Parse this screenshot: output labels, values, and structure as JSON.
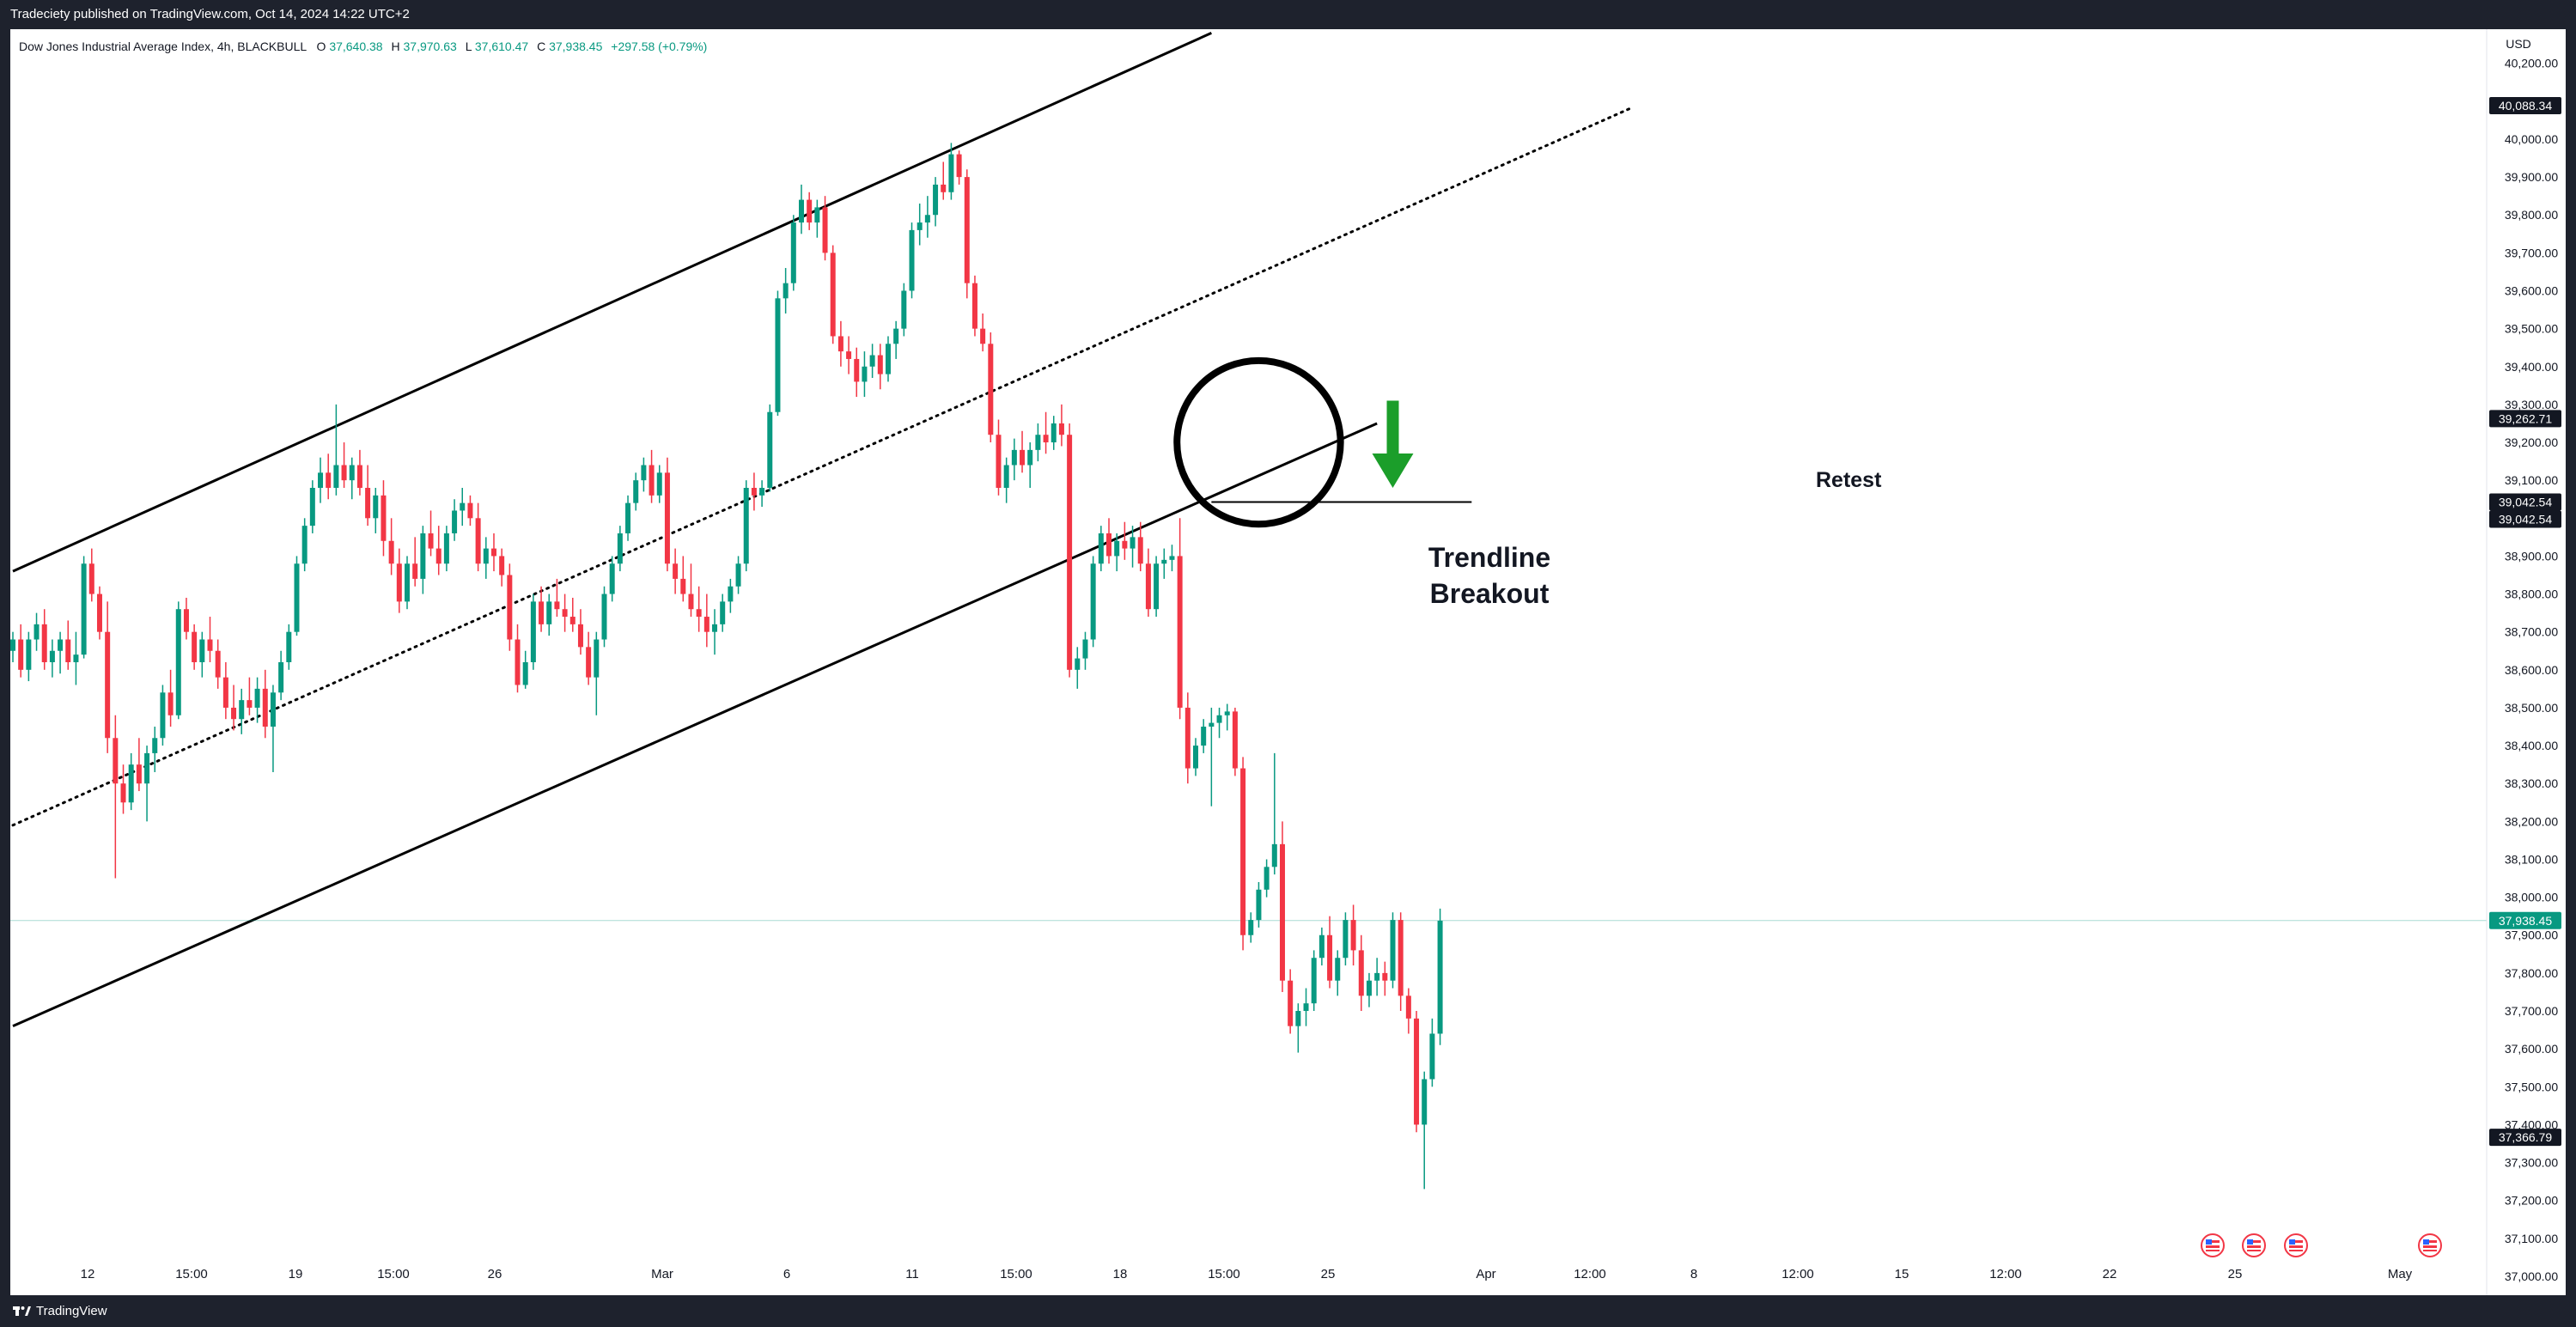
{
  "header": {
    "published": "Tradeciety published on TradingView.com, Oct 14, 2024 14:22 UTC+2"
  },
  "footer": {
    "brand": "TradingView"
  },
  "legend": {
    "symbol": "Dow Jones Industrial Average Index, 4h, BLACKBULL",
    "o_label": "O",
    "o": "37,640.38",
    "h_label": "H",
    "h": "37,970.63",
    "l_label": "L",
    "l": "37,610.47",
    "c_label": "C",
    "c": "37,938.45",
    "change": "+297.58 (+0.79%)"
  },
  "currency": "USD",
  "colors": {
    "up": "#089981",
    "down": "#f23645",
    "last_price": "#089981",
    "annotation_green": "#1b9e2a",
    "label_dark": "#131722"
  },
  "annotations": {
    "breakout_line1": "Trendline",
    "breakout_line2": "Breakout",
    "retest": "Retest"
  },
  "event_icons": [
    "us-flag-icon",
    "us-flag-icon",
    "us-flag-icon",
    "us-flag-icon"
  ],
  "chart_data": {
    "type": "candlestick",
    "interval": "4h",
    "y_range": [
      36950,
      40290
    ],
    "grid": false,
    "y_ticks": [
      {
        "value": 37000,
        "label": "37,000.00"
      },
      {
        "value": 37100,
        "label": "37,100.00"
      },
      {
        "value": 37200,
        "label": "37,200.00"
      },
      {
        "value": 37300,
        "label": "37,300.00"
      },
      {
        "value": 37400,
        "label": "37,400.00"
      },
      {
        "value": 37500,
        "label": "37,500.00"
      },
      {
        "value": 37600,
        "label": "37,600.00"
      },
      {
        "value": 37700,
        "label": "37,700.00"
      },
      {
        "value": 37800,
        "label": "37,800.00"
      },
      {
        "value": 37900,
        "label": "37,900.00"
      },
      {
        "value": 38000,
        "label": "38,000.00"
      },
      {
        "value": 38100,
        "label": "38,100.00"
      },
      {
        "value": 38200,
        "label": "38,200.00"
      },
      {
        "value": 38300,
        "label": "38,300.00"
      },
      {
        "value": 38400,
        "label": "38,400.00"
      },
      {
        "value": 38500,
        "label": "38,500.00"
      },
      {
        "value": 38600,
        "label": "38,600.00"
      },
      {
        "value": 38700,
        "label": "38,700.00"
      },
      {
        "value": 38800,
        "label": "38,800.00"
      },
      {
        "value": 38900,
        "label": "38,900.00"
      },
      {
        "value": 39000,
        "label": "39,000.00"
      },
      {
        "value": 39100,
        "label": "39,100.00"
      },
      {
        "value": 39200,
        "label": "39,200.00"
      },
      {
        "value": 39300,
        "label": "39,300.00"
      },
      {
        "value": 39400,
        "label": "39,400.00"
      },
      {
        "value": 39500,
        "label": "39,500.00"
      },
      {
        "value": 39600,
        "label": "39,600.00"
      },
      {
        "value": 39700,
        "label": "39,700.00"
      },
      {
        "value": 39800,
        "label": "39,800.00"
      },
      {
        "value": 39900,
        "label": "39,900.00"
      },
      {
        "value": 40000,
        "label": "40,000.00"
      },
      {
        "value": 40200,
        "label": "40,200.00"
      }
    ],
    "price_labels": [
      {
        "value": 40088.34,
        "label": "40,088.34",
        "kind": "line"
      },
      {
        "value": 39262.71,
        "label": "39,262.71",
        "kind": "line"
      },
      {
        "value": 39042.54,
        "label": "39,042.54",
        "kind": "line"
      },
      {
        "value": 39042.54,
        "label": "39,042.54",
        "kind": "line"
      },
      {
        "value": 37938.45,
        "label": "37,938.45",
        "kind": "last"
      },
      {
        "value": 37366.79,
        "label": "37,366.79",
        "kind": "line"
      }
    ],
    "x_ticks": [
      "12",
      "15:00",
      "19",
      "15:00",
      "26",
      "Mar",
      "6",
      "11",
      "15:00",
      "18",
      "15:00",
      "25",
      "Apr",
      "12:00",
      "8",
      "12:00",
      "15",
      "12:00",
      "22",
      "25",
      "May"
    ],
    "candles": [
      [
        38650,
        38700,
        38620,
        38680
      ],
      [
        38680,
        38720,
        38580,
        38600
      ],
      [
        38600,
        38700,
        38570,
        38680
      ],
      [
        38680,
        38750,
        38650,
        38720
      ],
      [
        38720,
        38760,
        38600,
        38620
      ],
      [
        38620,
        38680,
        38580,
        38650
      ],
      [
        38650,
        38700,
        38590,
        38680
      ],
      [
        38680,
        38730,
        38600,
        38620
      ],
      [
        38620,
        38700,
        38560,
        38640
      ],
      [
        38640,
        38900,
        38630,
        38880
      ],
      [
        38880,
        38920,
        38780,
        38800
      ],
      [
        38800,
        38820,
        38680,
        38700
      ],
      [
        38700,
        38780,
        38380,
        38420
      ],
      [
        38420,
        38480,
        38050,
        38300
      ],
      [
        38300,
        38350,
        38220,
        38250
      ],
      [
        38250,
        38380,
        38230,
        38350
      ],
      [
        38350,
        38420,
        38280,
        38300
      ],
      [
        38300,
        38400,
        38200,
        38380
      ],
      [
        38380,
        38450,
        38330,
        38420
      ],
      [
        38420,
        38560,
        38400,
        38540
      ],
      [
        38540,
        38600,
        38450,
        38480
      ],
      [
        38480,
        38780,
        38470,
        38760
      ],
      [
        38760,
        38790,
        38680,
        38700
      ],
      [
        38700,
        38720,
        38600,
        38620
      ],
      [
        38620,
        38700,
        38580,
        38680
      ],
      [
        38680,
        38740,
        38620,
        38650
      ],
      [
        38650,
        38680,
        38550,
        38580
      ],
      [
        38580,
        38620,
        38470,
        38500
      ],
      [
        38500,
        38560,
        38440,
        38470
      ],
      [
        38470,
        38550,
        38430,
        38520
      ],
      [
        38520,
        38580,
        38480,
        38500
      ],
      [
        38500,
        38580,
        38460,
        38550
      ],
      [
        38550,
        38600,
        38420,
        38450
      ],
      [
        38450,
        38560,
        38330,
        38540
      ],
      [
        38540,
        38650,
        38520,
        38620
      ],
      [
        38620,
        38720,
        38600,
        38700
      ],
      [
        38700,
        38900,
        38690,
        38880
      ],
      [
        38880,
        39000,
        38860,
        38980
      ],
      [
        38980,
        39100,
        38960,
        39080
      ],
      [
        39080,
        39160,
        39040,
        39120
      ],
      [
        39120,
        39170,
        39050,
        39080
      ],
      [
        39080,
        39300,
        39060,
        39140
      ],
      [
        39140,
        39200,
        39080,
        39100
      ],
      [
        39100,
        39160,
        39050,
        39140
      ],
      [
        39140,
        39180,
        39060,
        39080
      ],
      [
        39080,
        39140,
        38980,
        39000
      ],
      [
        39000,
        39080,
        38960,
        39060
      ],
      [
        39060,
        39100,
        38900,
        38940
      ],
      [
        38940,
        39000,
        38850,
        38880
      ],
      [
        38880,
        38920,
        38750,
        38780
      ],
      [
        38780,
        38900,
        38760,
        38880
      ],
      [
        38880,
        38950,
        38820,
        38840
      ],
      [
        38840,
        38980,
        38800,
        38960
      ],
      [
        38960,
        39020,
        38900,
        38920
      ],
      [
        38920,
        38980,
        38850,
        38880
      ],
      [
        38880,
        38980,
        38860,
        38960
      ],
      [
        38960,
        39050,
        38940,
        39020
      ],
      [
        39020,
        39080,
        38980,
        39040
      ],
      [
        39040,
        39060,
        38980,
        39000
      ],
      [
        39000,
        39040,
        38860,
        38880
      ],
      [
        38880,
        38950,
        38840,
        38920
      ],
      [
        38920,
        38960,
        38860,
        38900
      ],
      [
        38900,
        38920,
        38820,
        38850
      ],
      [
        38850,
        38880,
        38650,
        38680
      ],
      [
        38680,
        38720,
        38540,
        38560
      ],
      [
        38560,
        38650,
        38550,
        38620
      ],
      [
        38620,
        38800,
        38600,
        38780
      ],
      [
        38780,
        38820,
        38700,
        38720
      ],
      [
        38720,
        38800,
        38690,
        38780
      ],
      [
        38780,
        38840,
        38740,
        38760
      ],
      [
        38760,
        38800,
        38700,
        38740
      ],
      [
        38740,
        38790,
        38700,
        38720
      ],
      [
        38720,
        38760,
        38640,
        38660
      ],
      [
        38660,
        38700,
        38560,
        38580
      ],
      [
        38580,
        38700,
        38480,
        38680
      ],
      [
        38680,
        38820,
        38660,
        38800
      ],
      [
        38800,
        38900,
        38780,
        38880
      ],
      [
        38880,
        38980,
        38860,
        38960
      ],
      [
        38960,
        39060,
        38940,
        39040
      ],
      [
        39040,
        39120,
        39020,
        39100
      ],
      [
        39100,
        39160,
        39070,
        39140
      ],
      [
        39140,
        39180,
        39040,
        39060
      ],
      [
        39060,
        39140,
        39040,
        39120
      ],
      [
        39120,
        39160,
        38860,
        38880
      ],
      [
        38880,
        38920,
        38800,
        38840
      ],
      [
        38840,
        38900,
        38780,
        38800
      ],
      [
        38800,
        38880,
        38740,
        38760
      ],
      [
        38760,
        38820,
        38700,
        38740
      ],
      [
        38740,
        38800,
        38660,
        38700
      ],
      [
        38700,
        38760,
        38640,
        38720
      ],
      [
        38720,
        38800,
        38700,
        38780
      ],
      [
        38780,
        38840,
        38750,
        38820
      ],
      [
        38820,
        38900,
        38800,
        38880
      ],
      [
        38880,
        39100,
        38860,
        39080
      ],
      [
        39080,
        39120,
        39020,
        39060
      ],
      [
        39060,
        39100,
        39030,
        39080
      ],
      [
        39080,
        39300,
        39070,
        39280
      ],
      [
        39280,
        39600,
        39270,
        39580
      ],
      [
        39580,
        39660,
        39540,
        39620
      ],
      [
        39620,
        39800,
        39600,
        39780
      ],
      [
        39780,
        39880,
        39750,
        39840
      ],
      [
        39840,
        39860,
        39760,
        39780
      ],
      [
        39780,
        39840,
        39740,
        39820
      ],
      [
        39820,
        39850,
        39680,
        39700
      ],
      [
        39700,
        39720,
        39460,
        39480
      ],
      [
        39480,
        39520,
        39400,
        39440
      ],
      [
        39440,
        39480,
        39380,
        39420
      ],
      [
        39420,
        39450,
        39320,
        39360
      ],
      [
        39360,
        39440,
        39320,
        39400
      ],
      [
        39400,
        39460,
        39370,
        39430
      ],
      [
        39430,
        39460,
        39340,
        39380
      ],
      [
        39380,
        39480,
        39360,
        39460
      ],
      [
        39460,
        39520,
        39420,
        39500
      ],
      [
        39500,
        39620,
        39480,
        39600
      ],
      [
        39600,
        39780,
        39580,
        39760
      ],
      [
        39760,
        39830,
        39720,
        39780
      ],
      [
        39780,
        39850,
        39740,
        39800
      ],
      [
        39800,
        39900,
        39770,
        39880
      ],
      [
        39880,
        39940,
        39840,
        39860
      ],
      [
        39860,
        39990,
        39840,
        39960
      ],
      [
        39960,
        39970,
        39880,
        39900
      ],
      [
        39900,
        39920,
        39580,
        39620
      ],
      [
        39620,
        39640,
        39480,
        39500
      ],
      [
        39500,
        39540,
        39440,
        39460
      ],
      [
        39460,
        39490,
        39200,
        39220
      ],
      [
        39220,
        39260,
        39060,
        39080
      ],
      [
        39080,
        39160,
        39040,
        39140
      ],
      [
        39140,
        39210,
        39100,
        39180
      ],
      [
        39180,
        39230,
        39120,
        39140
      ],
      [
        39140,
        39200,
        39080,
        39180
      ],
      [
        39180,
        39250,
        39150,
        39220
      ],
      [
        39220,
        39280,
        39170,
        39200
      ],
      [
        39200,
        39270,
        39180,
        39250
      ],
      [
        39250,
        39300,
        39190,
        39220
      ],
      [
        39220,
        39250,
        38580,
        38600
      ],
      [
        38600,
        38660,
        38550,
        38630
      ],
      [
        38630,
        38700,
        38600,
        38680
      ],
      [
        38680,
        38900,
        38660,
        38880
      ],
      [
        38880,
        38980,
        38860,
        38960
      ],
      [
        38960,
        39000,
        38880,
        38900
      ],
      [
        38900,
        38960,
        38860,
        38940
      ],
      [
        38940,
        38990,
        38890,
        38920
      ],
      [
        38920,
        38980,
        38870,
        38950
      ],
      [
        38950,
        38990,
        38860,
        38880
      ],
      [
        38880,
        38920,
        38740,
        38760
      ],
      [
        38760,
        38900,
        38740,
        38880
      ],
      [
        38880,
        38920,
        38840,
        38890
      ],
      [
        38890,
        38930,
        38860,
        38900
      ],
      [
        38900,
        39000,
        38470,
        38500
      ],
      [
        38500,
        38540,
        38300,
        38340
      ],
      [
        38340,
        38420,
        38320,
        38400
      ],
      [
        38400,
        38470,
        38380,
        38450
      ],
      [
        38450,
        38500,
        38240,
        38460
      ],
      [
        38460,
        38500,
        38420,
        38480
      ],
      [
        38480,
        38510,
        38440,
        38490
      ],
      [
        38490,
        38500,
        38320,
        38340
      ],
      [
        38340,
        38370,
        37860,
        37900
      ],
      [
        37900,
        37960,
        37880,
        37940
      ],
      [
        37940,
        38040,
        37920,
        38020
      ],
      [
        38020,
        38100,
        38000,
        38080
      ],
      [
        38080,
        38380,
        38060,
        38140
      ],
      [
        38140,
        38200,
        37750,
        37780
      ],
      [
        37780,
        37810,
        37640,
        37660
      ],
      [
        37660,
        37720,
        37590,
        37700
      ],
      [
        37700,
        37760,
        37660,
        37720
      ],
      [
        37720,
        37860,
        37700,
        37840
      ],
      [
        37840,
        37920,
        37820,
        37900
      ],
      [
        37900,
        37950,
        37760,
        37780
      ],
      [
        37780,
        37860,
        37740,
        37840
      ],
      [
        37840,
        37960,
        37820,
        37940
      ],
      [
        37940,
        37980,
        37820,
        37860
      ],
      [
        37860,
        37900,
        37700,
        37740
      ],
      [
        37740,
        37800,
        37710,
        37780
      ],
      [
        37780,
        37840,
        37740,
        37800
      ],
      [
        37800,
        37830,
        37740,
        37780
      ],
      [
        37780,
        37960,
        37760,
        37940
      ],
      [
        37940,
        37960,
        37700,
        37740
      ],
      [
        37740,
        37760,
        37640,
        37680
      ],
      [
        37680,
        37700,
        37380,
        37400
      ],
      [
        37400,
        37540,
        37230,
        37520
      ],
      [
        37520,
        37680,
        37500,
        37640
      ],
      [
        37640,
        37970,
        37610,
        37938
      ]
    ],
    "trendlines": [
      {
        "name": "upper-channel",
        "style": "solid",
        "from": [
          0,
          38860
        ],
        "to": [
          152,
          40280
        ]
      },
      {
        "name": "middle-channel",
        "style": "dotted",
        "from": [
          0,
          38190
        ],
        "to": [
          205,
          40080
        ]
      },
      {
        "name": "lower-channel",
        "style": "solid",
        "from": [
          0,
          37660
        ],
        "to": [
          173,
          39250
        ]
      },
      {
        "name": "retest-level",
        "style": "solid",
        "from": [
          152,
          39042.54
        ],
        "to": [
          185,
          39042.54
        ]
      }
    ],
    "annotations": [
      {
        "type": "circle",
        "name": "breakout-circle",
        "center": [
          158,
          39200
        ],
        "radius_bars": 8.5
      },
      {
        "type": "arrow",
        "name": "down-arrow",
        "at": [
          175,
          39310
        ],
        "to": [
          175,
          39080
        ]
      }
    ]
  }
}
